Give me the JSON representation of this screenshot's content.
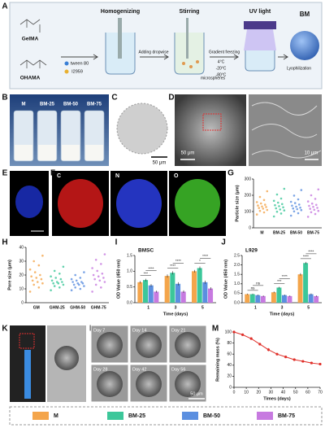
{
  "figure": {
    "panel_labels": [
      "A",
      "B",
      "C",
      "D",
      "E",
      "F",
      "G",
      "H",
      "I",
      "J",
      "K",
      "L",
      "M"
    ],
    "schematic": {
      "gelma": "GelMA",
      "ohama": "OHAMA",
      "step1": "Homogenizing",
      "step2": "Stirring",
      "step3": "UV light",
      "product": "BM",
      "reagent1": "tween 80",
      "reagent2": "I2959",
      "dropwise": "Adding dropwise",
      "microspheres": "microspheres",
      "freezing": "Gradient freezing",
      "temps": [
        "4°C",
        "-20°C",
        "-80°C"
      ],
      "lyophilization": "Lyophilization"
    },
    "vials": [
      "M",
      "BM-25",
      "BM-50",
      "BM-75"
    ],
    "scale_bars": {
      "c": "50 μm",
      "d_left": "50 μm",
      "d_right": "10 μm",
      "l": "50 μm"
    },
    "elements": [
      "C",
      "N",
      "O"
    ],
    "days": [
      "Day 7",
      "Day 14",
      "Day 21",
      "Day 28",
      "Day 42",
      "Day 56"
    ],
    "legend": [
      {
        "name": "M",
        "color": "#f4a54b"
      },
      {
        "name": "BM-25",
        "color": "#3cc79a"
      },
      {
        "name": "BM-50",
        "color": "#5b8fe0"
      },
      {
        "name": "BM-75",
        "color": "#c77ae0"
      }
    ]
  },
  "chart_data": [
    {
      "type": "strip",
      "ylabel": "Particle size (μm)",
      "categories": [
        "M",
        "BM-25",
        "BM-50",
        "BM-75"
      ],
      "series": [
        {
          "color": "#f4a54b",
          "values": [
            82,
            95,
            104,
            110,
            118,
            122,
            128,
            131,
            137,
            142,
            150,
            158,
            171,
            190,
            225
          ]
        },
        {
          "color": "#3cc79a",
          "values": [
            70,
            88,
            99,
            107,
            113,
            120,
            126,
            133,
            139,
            146,
            155,
            166,
            180,
            205,
            240
          ]
        },
        {
          "color": "#5b8fe0",
          "values": [
            75,
            90,
            101,
            109,
            115,
            119,
            124,
            130,
            136,
            143,
            152,
            160,
            175,
            198,
            232
          ]
        },
        {
          "color": "#c77ae0",
          "values": [
            68,
            85,
            96,
            104,
            111,
            117,
            123,
            129,
            135,
            141,
            149,
            162,
            178,
            200,
            236
          ]
        }
      ],
      "ylim": [
        0,
        300
      ],
      "yticks": [
        0,
        100,
        200,
        300
      ]
    },
    {
      "type": "strip",
      "ylabel": "Pore size (μm)",
      "categories": [
        "GM",
        "GHM-25",
        "GHM-50",
        "GHM-75"
      ],
      "series": [
        {
          "color": "#f4a54b",
          "values": [
            8,
            11,
            13,
            14,
            15,
            16,
            17,
            18,
            19,
            20,
            22,
            24,
            27,
            30,
            34
          ]
        },
        {
          "color": "#3cc79a",
          "values": [
            9,
            11,
            12,
            13,
            14,
            14,
            15,
            15,
            16,
            17,
            18,
            19,
            21,
            23,
            26
          ]
        },
        {
          "color": "#5b8fe0",
          "values": [
            9,
            10,
            11,
            12,
            13,
            13,
            14,
            14,
            15,
            15,
            16,
            17,
            18,
            20,
            22
          ]
        },
        {
          "color": "#c77ae0",
          "values": [
            8,
            11,
            13,
            15,
            16,
            17,
            18,
            19,
            20,
            21,
            23,
            25,
            28,
            31,
            35
          ]
        }
      ],
      "ylim": [
        0,
        40
      ],
      "yticks": [
        0,
        10,
        20,
        30,
        40
      ]
    },
    {
      "type": "bar",
      "title": "BMSC",
      "xlabel": "Time (days)",
      "ylabel": "OD Value (450 nm)",
      "categories": [
        "1",
        "3",
        "5"
      ],
      "series": [
        {
          "color": "#f4a54b",
          "values": [
            0.65,
            0.85,
            1.0
          ],
          "errors": [
            0.04,
            0.05,
            0.04
          ]
        },
        {
          "color": "#3cc79a",
          "values": [
            0.72,
            0.95,
            1.1
          ],
          "errors": [
            0.04,
            0.05,
            0.05
          ]
        },
        {
          "color": "#5b8fe0",
          "values": [
            0.55,
            0.6,
            0.65
          ],
          "errors": [
            0.04,
            0.05,
            0.05
          ]
        },
        {
          "color": "#c77ae0",
          "values": [
            0.35,
            0.35,
            0.45
          ],
          "errors": [
            0.03,
            0.04,
            0.04
          ]
        }
      ],
      "annotations": [
        "***",
        "****",
        "****",
        "****",
        "*",
        "****"
      ],
      "ylim": [
        0,
        1.5
      ],
      "yticks": [
        {
          "value": 0,
          "label": "0.0"
        },
        0.5,
        {
          "value": 1,
          "label": "1.0"
        },
        1.5
      ]
    },
    {
      "type": "bar",
      "title": "L929",
      "xlabel": "Time (days)",
      "ylabel": "OD Value (450 nm)",
      "categories": [
        "1",
        "3",
        "5"
      ],
      "series": [
        {
          "color": "#f4a54b",
          "values": [
            0.45,
            0.55,
            1.5
          ],
          "errors": [
            0.03,
            0.04,
            0.06
          ]
        },
        {
          "color": "#3cc79a",
          "values": [
            0.45,
            0.8,
            2.1
          ],
          "errors": [
            0.03,
            0.04,
            0.06
          ]
        },
        {
          "color": "#5b8fe0",
          "values": [
            0.4,
            0.4,
            0.45
          ],
          "errors": [
            0.03,
            0.03,
            0.04
          ]
        },
        {
          "color": "#c77ae0",
          "values": [
            0.35,
            0.35,
            0.35
          ],
          "errors": [
            0.03,
            0.03,
            0.03
          ]
        }
      ],
      "annotations": [
        "ns",
        "ns",
        "***",
        "****",
        "****",
        "****"
      ],
      "ylim": [
        0,
        2.5
      ],
      "yticks": [
        {
          "value": 0,
          "label": "0.0"
        },
        0.5,
        {
          "value": 1,
          "label": "1.0"
        },
        1.5,
        {
          "value": 2,
          "label": "2.0"
        },
        2.5
      ]
    },
    {
      "type": "line",
      "xlabel": "Times (days)",
      "ylabel": "Remaining mass (%)",
      "color": "#e0302a",
      "x": [
        0,
        7,
        14,
        21,
        28,
        35,
        42,
        49,
        56,
        63,
        70
      ],
      "values": [
        100,
        95,
        88,
        78,
        68,
        60,
        55,
        50,
        47,
        44,
        42
      ],
      "errors": [
        0,
        1,
        2,
        2,
        3,
        2,
        2,
        2,
        2,
        2,
        2
      ],
      "xlim": [
        0,
        70
      ],
      "xticks": [
        0,
        10,
        20,
        30,
        40,
        50,
        60,
        70
      ],
      "ylim": [
        0,
        100
      ],
      "yticks": [
        0,
        20,
        40,
        60,
        80,
        100
      ]
    }
  ]
}
